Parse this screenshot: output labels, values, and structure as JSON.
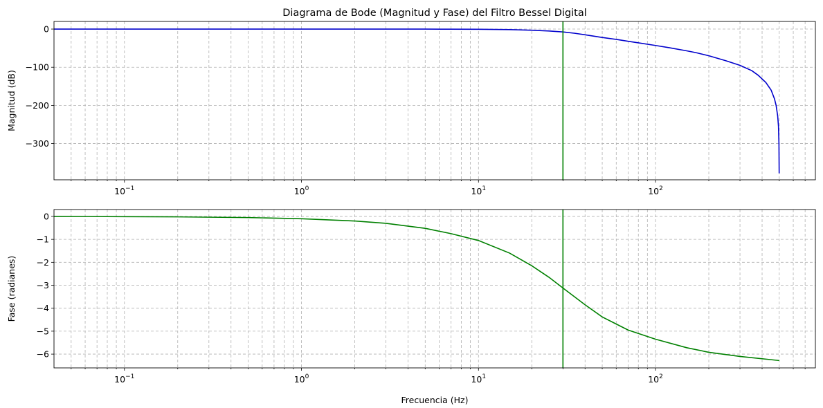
{
  "chart_data": [
    {
      "type": "line",
      "title": "Diagrama de Bode (Magnitud y Fase) del Filtro Bessel Digital",
      "xlabel": "",
      "ylabel": "Magnitud (dB)",
      "xscale": "log",
      "xlim": [
        0.04,
        800
      ],
      "ylim": [
        -395,
        20
      ],
      "grid": true,
      "grid_style": "dashed, major and minor",
      "x_ticks": [
        {
          "base": "10",
          "exp": "−1",
          "value": 0.1
        },
        {
          "base": "10",
          "exp": "0",
          "value": 1
        },
        {
          "base": "10",
          "exp": "1",
          "value": 10
        },
        {
          "base": "10",
          "exp": "2",
          "value": 100
        }
      ],
      "y_ticks": [
        {
          "label": "0",
          "value": 0
        },
        {
          "label": "−100",
          "value": -100
        },
        {
          "label": "−200",
          "value": -200
        },
        {
          "label": "−300",
          "value": -300
        }
      ],
      "series": [
        {
          "color": "#0000cc",
          "x": [
            0.04,
            0.1,
            0.3,
            1,
            2,
            3,
            5,
            7,
            10,
            15,
            20,
            25,
            30,
            35,
            40,
            50,
            60,
            70,
            80,
            100,
            120,
            150,
            170,
            200,
            250,
            300,
            350,
            380,
            420,
            450,
            470,
            480,
            490,
            495,
            498,
            499.5
          ],
          "y": [
            0,
            0,
            0,
            0,
            0,
            0,
            -0.1,
            -0.3,
            -0.5,
            -1.5,
            -3,
            -5,
            -7.5,
            -11,
            -15,
            -22,
            -27,
            -32,
            -36,
            -43,
            -49,
            -57,
            -62,
            -70,
            -83,
            -95,
            -109,
            -121,
            -140,
            -160,
            -183,
            -200,
            -228,
            -255,
            -300,
            -378
          ]
        }
      ],
      "vline": {
        "x": 30,
        "color": "#008000"
      }
    },
    {
      "type": "line",
      "title": "",
      "xlabel": "Frecuencia (Hz)",
      "ylabel": "Fase (radianes)",
      "xscale": "log",
      "xlim": [
        0.04,
        800
      ],
      "ylim": [
        -6.6,
        0.3
      ],
      "grid": true,
      "grid_style": "dashed, major and minor",
      "x_ticks": [
        {
          "base": "10",
          "exp": "−1",
          "value": 0.1
        },
        {
          "base": "10",
          "exp": "0",
          "value": 1
        },
        {
          "base": "10",
          "exp": "1",
          "value": 10
        },
        {
          "base": "10",
          "exp": "2",
          "value": 100
        }
      ],
      "y_ticks": [
        {
          "label": "0",
          "value": 0
        },
        {
          "label": "−1",
          "value": -1
        },
        {
          "label": "−2",
          "value": -2
        },
        {
          "label": "−3",
          "value": -3
        },
        {
          "label": "−4",
          "value": -4
        },
        {
          "label": "−5",
          "value": -5
        },
        {
          "label": "−6",
          "value": -6
        }
      ],
      "series": [
        {
          "color": "#008000",
          "x": [
            0.04,
            0.1,
            0.2,
            0.5,
            1,
            2,
            3,
            5,
            7,
            10,
            15,
            20,
            25,
            30,
            40,
            50,
            70,
            100,
            150,
            200,
            300,
            500
          ],
          "y": [
            0,
            -0.01,
            -0.02,
            -0.05,
            -0.1,
            -0.2,
            -0.3,
            -0.52,
            -0.75,
            -1.05,
            -1.6,
            -2.15,
            -2.65,
            -3.12,
            -3.85,
            -4.38,
            -4.95,
            -5.35,
            -5.72,
            -5.92,
            -6.1,
            -6.28
          ]
        }
      ],
      "vline": {
        "x": 30,
        "color": "#008000"
      }
    }
  ]
}
